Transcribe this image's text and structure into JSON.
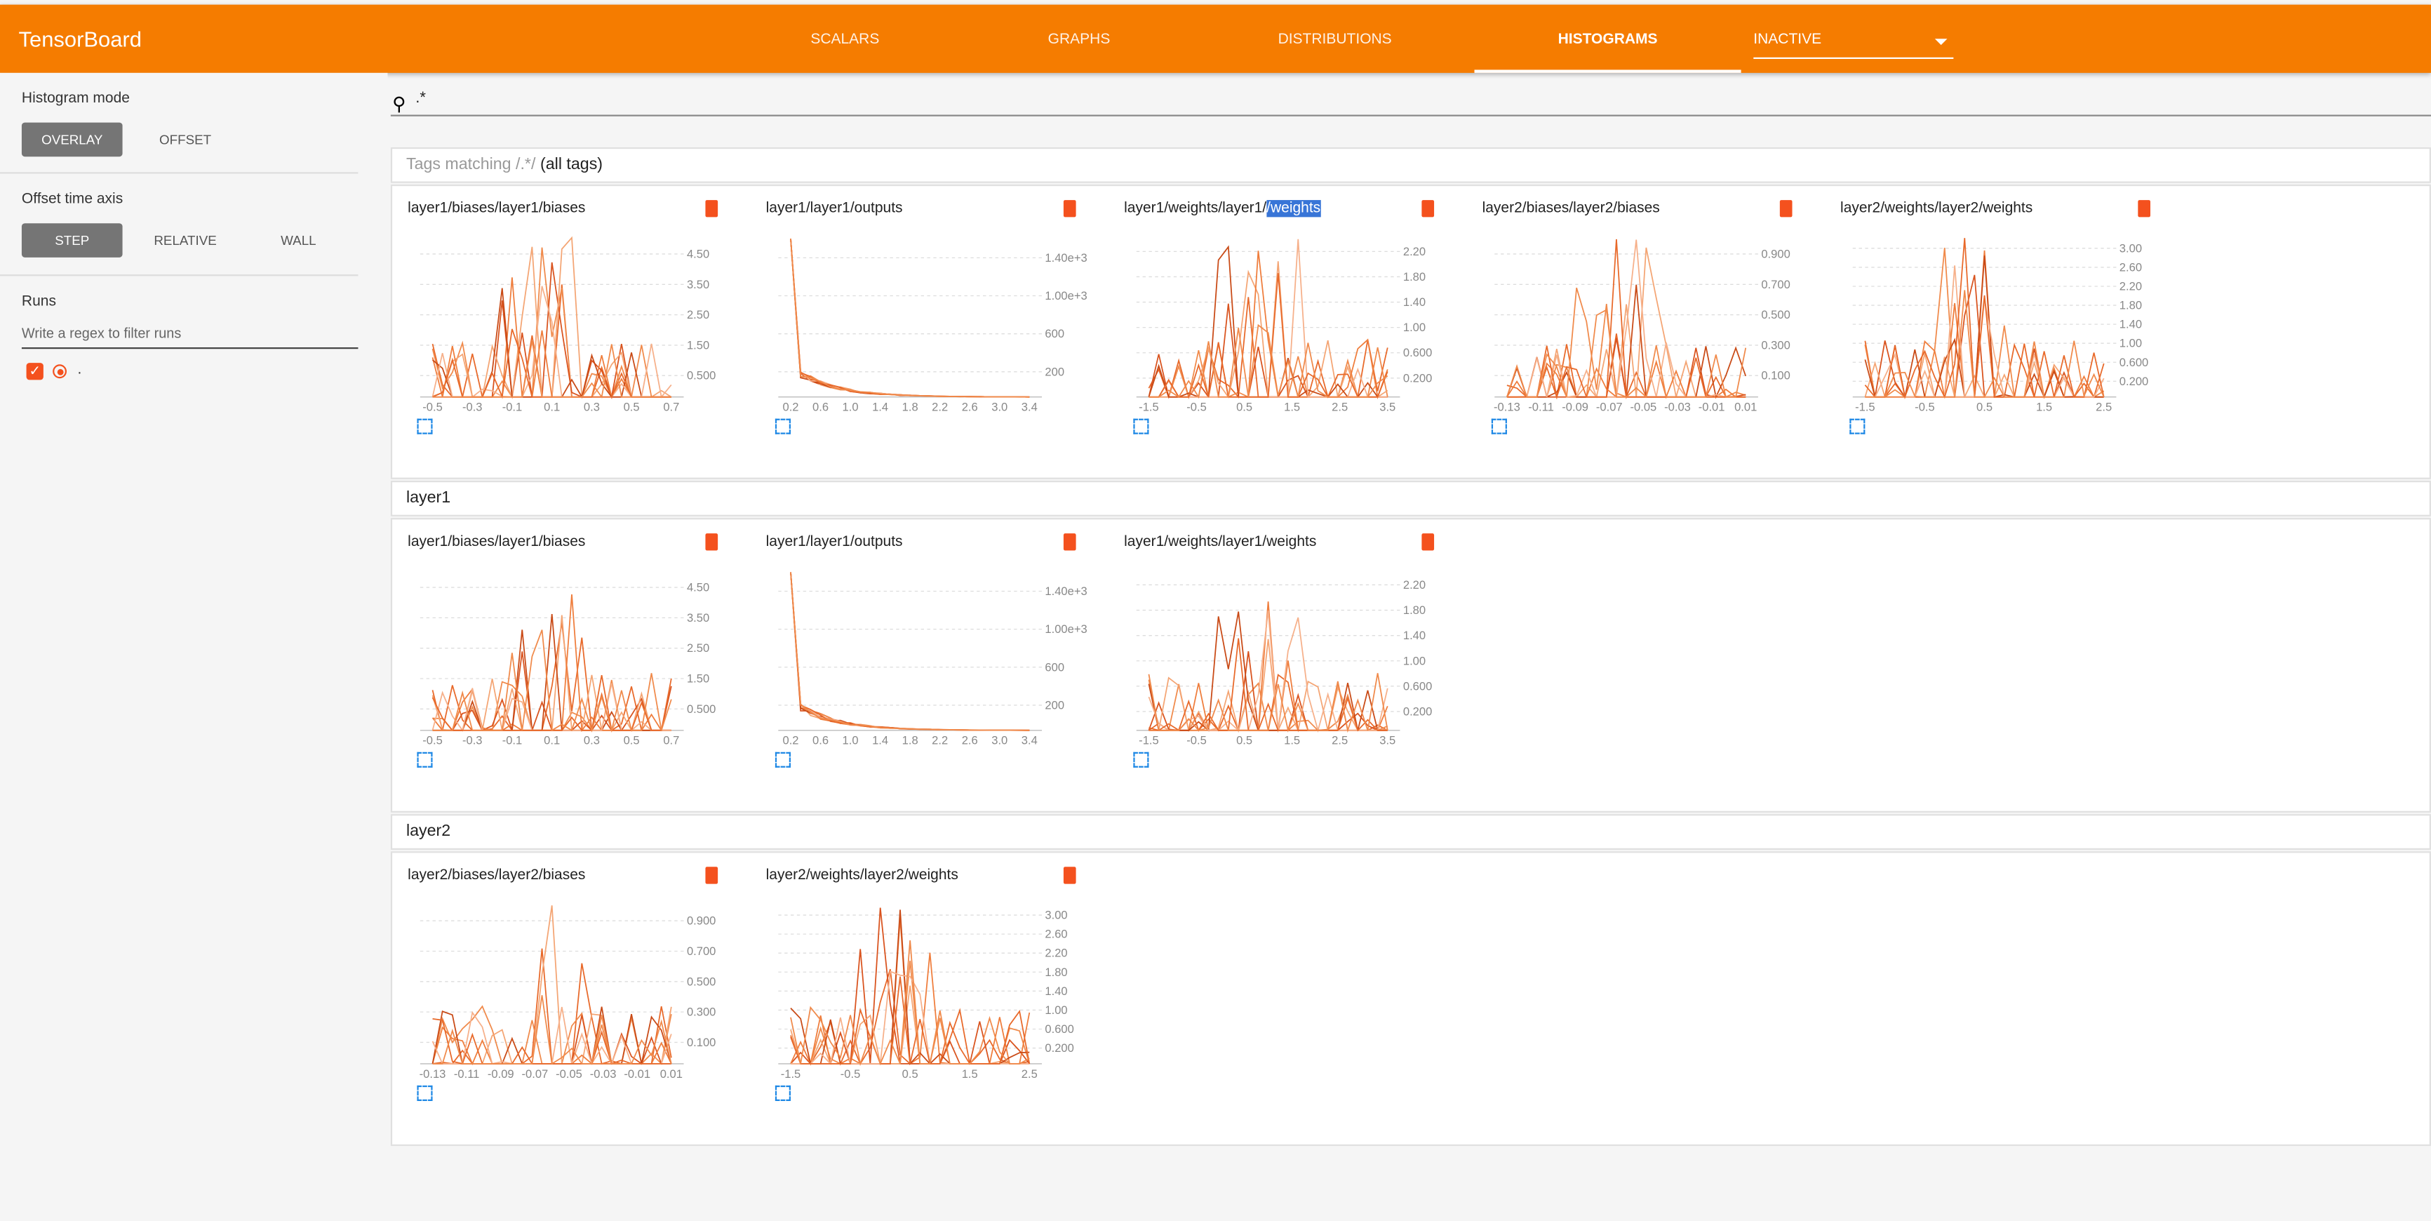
{
  "header": {
    "title": "TensorBoard",
    "tabs": [
      "SCALARS",
      "GRAPHS",
      "DISTRIBUTIONS",
      "HISTOGRAMS"
    ],
    "run_selector": "INACTIVE"
  },
  "sidebar": {
    "histogram_mode": {
      "label": "Histogram mode",
      "options": [
        "OVERLAY",
        "OFFSET"
      ]
    },
    "offset_time_axis": {
      "label": "Offset time axis",
      "options": [
        "STEP",
        "RELATIVE",
        "WALL"
      ]
    },
    "runs": {
      "label": "Runs",
      "filter_placeholder": "Write a regex to filter runs",
      "items": [
        "."
      ]
    }
  },
  "search": ".*",
  "sections": [
    {
      "title": "Tags matching /.*/",
      "title_suffix": "(all tags)",
      "cards": [
        {
          "title": "layer1/biases/layer1/biases",
          "xticks": [
            "-0.5",
            "-0.3",
            "-0.1",
            "0.1",
            "0.3",
            "0.5",
            "0.7"
          ],
          "yticks": [
            "4.50",
            "3.50",
            "2.50",
            "1.50",
            "0.500"
          ]
        },
        {
          "title": "layer1/layer1/outputs",
          "xticks": [
            "0.2",
            "0.6",
            "1.0",
            "1.4",
            "1.8",
            "2.2",
            "2.6",
            "3.0",
            "3.4"
          ],
          "yticks": [
            "1.40e+3",
            "1.00e+3",
            "600",
            "200"
          ]
        },
        {
          "title": "layer1/weights/layer1/",
          "title_highlight": "/weights",
          "xticks": [
            "-1.5",
            "-0.5",
            "0.5",
            "1.5",
            "2.5",
            "3.5"
          ],
          "yticks": [
            "2.20",
            "1.80",
            "1.40",
            "1.00",
            "0.600",
            "0.200"
          ]
        },
        {
          "title": "layer2/biases/layer2/biases",
          "xticks": [
            "-0.13",
            "-0.11",
            "-0.09",
            "-0.07",
            "-0.05",
            "-0.03",
            "-0.01",
            "0.01"
          ],
          "yticks": [
            "0.900",
            "0.700",
            "0.500",
            "0.300",
            "0.100"
          ]
        },
        {
          "title": "layer2/weights/layer2/weights",
          "xticks": [
            "-1.5",
            "-0.5",
            "0.5",
            "1.5",
            "2.5"
          ],
          "yticks": [
            "3.00",
            "2.60",
            "2.20",
            "1.80",
            "1.40",
            "1.00",
            "0.600",
            "0.200"
          ]
        }
      ]
    },
    {
      "title": "layer1",
      "cards": [
        {
          "title": "layer1/biases/layer1/biases",
          "xticks": [
            "-0.5",
            "-0.3",
            "-0.1",
            "0.1",
            "0.3",
            "0.5",
            "0.7"
          ],
          "yticks": [
            "4.50",
            "3.50",
            "2.50",
            "1.50",
            "0.500"
          ]
        },
        {
          "title": "layer1/layer1/outputs",
          "xticks": [
            "0.2",
            "0.6",
            "1.0",
            "1.4",
            "1.8",
            "2.2",
            "2.6",
            "3.0",
            "3.4"
          ],
          "yticks": [
            "1.40e+3",
            "1.00e+3",
            "600",
            "200"
          ]
        },
        {
          "title": "layer1/weights/layer1/weights",
          "xticks": [
            "-1.5",
            "-0.5",
            "0.5",
            "1.5",
            "2.5",
            "3.5"
          ],
          "yticks": [
            "2.20",
            "1.80",
            "1.40",
            "1.00",
            "0.600",
            "0.200"
          ]
        }
      ]
    },
    {
      "title": "layer2",
      "cards": [
        {
          "title": "layer2/biases/layer2/biases",
          "xticks": [
            "-0.13",
            "-0.11",
            "-0.09",
            "-0.07",
            "-0.05",
            "-0.03",
            "-0.01",
            "0.01"
          ],
          "yticks": [
            "0.900",
            "0.700",
            "0.500",
            "0.300",
            "0.100"
          ]
        },
        {
          "title": "layer2/weights/layer2/weights",
          "xticks": [
            "-1.5",
            "-0.5",
            "0.5",
            "1.5",
            "2.5"
          ],
          "yticks": [
            "3.00",
            "2.60",
            "2.20",
            "1.80",
            "1.40",
            "1.00",
            "0.600",
            "0.200"
          ]
        }
      ]
    }
  ]
}
